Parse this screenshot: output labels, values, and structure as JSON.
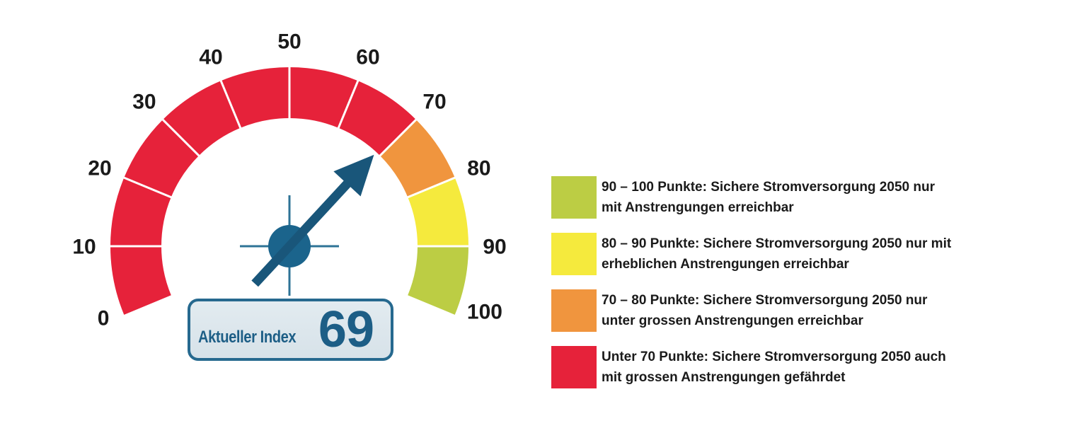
{
  "canvas": {
    "background": "#FFFFFF"
  },
  "chart_data": {
    "type": "gauge",
    "min": 0,
    "max": 100,
    "value": 69,
    "unit": "Punkte",
    "start_angle_deg": 202.5,
    "end_angle_deg": -22.5,
    "tick_step": 10,
    "tick_labels": [
      "0",
      "10",
      "20",
      "30",
      "40",
      "50",
      "60",
      "70",
      "80",
      "90",
      "100"
    ],
    "bands": [
      {
        "from": 0,
        "to": 70,
        "color": "#E6223A"
      },
      {
        "from": 70,
        "to": 80,
        "color": "#F0953E"
      },
      {
        "from": 80,
        "to": 90,
        "color": "#F5EA3D"
      },
      {
        "from": 90,
        "to": 100,
        "color": "#BCCD44"
      }
    ],
    "divider_color": "#FFFFFF",
    "tick_label_color": "#1A1A1A",
    "needle": {
      "value": 69,
      "color": "#19567A",
      "hub_color": "#1B648C",
      "crosshair_color": "#2E7396"
    }
  },
  "index_box": {
    "label": "Aktueller Index",
    "value": "69",
    "fill_top": "#E2EBF0",
    "fill_bottom": "#D7E2E9",
    "border_color": "#26698F",
    "text_color": "#1D5E86"
  },
  "legend": {
    "text_color": "#1A1A1A",
    "items": [
      {
        "swatch_color": "#BCCD44",
        "lines": [
          "90 – 100 Punkte: Sichere Stromversorgung 2050 nur",
          "mit Anstrengungen erreichbar"
        ]
      },
      {
        "swatch_color": "#F5EA3D",
        "lines": [
          "80 – 90 Punkte: Sichere Stromversorgung 2050 nur mit",
          "erheblichen Anstrengungen erreichbar"
        ]
      },
      {
        "swatch_color": "#F0953E",
        "lines": [
          "70 – 80 Punkte: Sichere Stromversorgung 2050 nur",
          "unter grossen Anstrengungen erreichbar"
        ]
      },
      {
        "swatch_color": "#E6223A",
        "lines": [
          "Unter 70 Punkte: Sichere Stromversorgung 2050 auch",
          "mit grossen Anstrengungen gefährdet"
        ]
      }
    ]
  }
}
